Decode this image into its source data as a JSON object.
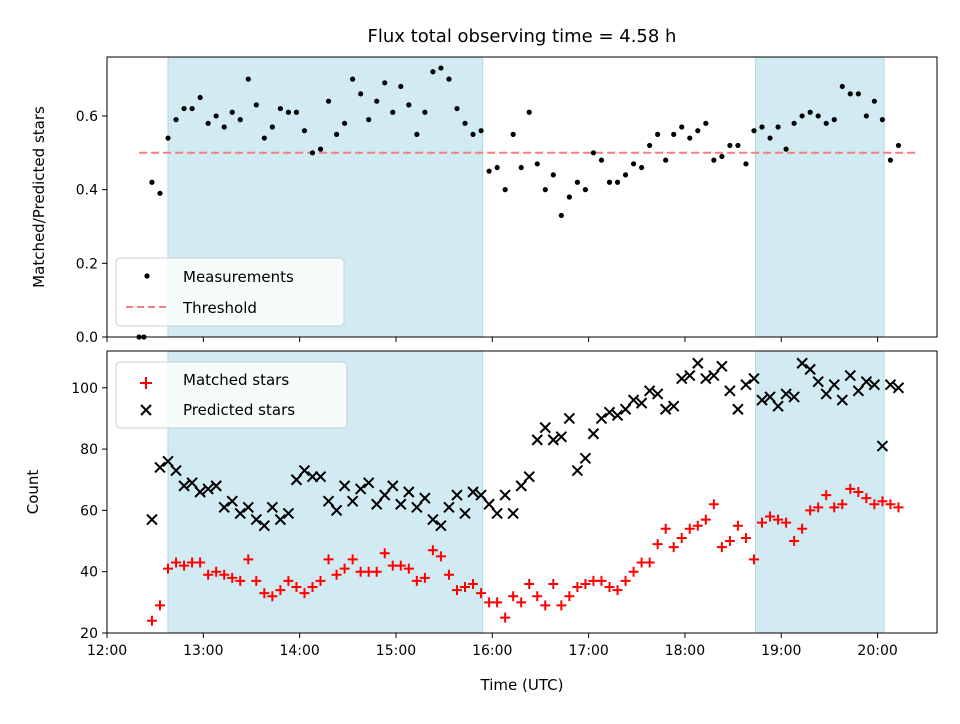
{
  "chart_data": [
    {
      "type": "scatter",
      "title": "Flux total observing time = 4.58 h",
      "ylabel": "Matched/Predicted stars",
      "xlabel": "",
      "xlim": [
        "12:00",
        "20:37"
      ],
      "ylim": [
        0,
        0.76
      ],
      "yticks": [
        0.0,
        0.2,
        0.4,
        0.6
      ],
      "ytick_labels": [
        "0.0",
        "0.2",
        "0.4",
        "0.6"
      ],
      "legend": {
        "position": "lower-left",
        "entries": [
          "Measurements",
          "Threshold"
        ]
      },
      "shaded_spans": [
        [
          "12:38",
          "15:54"
        ],
        [
          "18:44",
          "20:04"
        ]
      ],
      "colors": {
        "span": "#add8e6",
        "measurement": "#000000",
        "threshold": "#f08080"
      },
      "threshold": {
        "name": "Threshold",
        "y": 0.5,
        "x_range": [
          "12:20",
          "20:24"
        ]
      },
      "series": [
        {
          "name": "Measurements",
          "x": [
            "12:20",
            "12:23",
            "12:28",
            "12:33",
            "12:38",
            "12:43",
            "12:48",
            "12:53",
            "12:58",
            "13:03",
            "13:08",
            "13:13",
            "13:18",
            "13:23",
            "13:28",
            "13:33",
            "13:38",
            "13:43",
            "13:48",
            "13:53",
            "13:58",
            "14:03",
            "14:08",
            "14:13",
            "14:18",
            "14:23",
            "14:28",
            "14:33",
            "14:38",
            "14:43",
            "14:48",
            "14:53",
            "14:58",
            "15:03",
            "15:08",
            "15:13",
            "15:18",
            "15:23",
            "15:28",
            "15:33",
            "15:38",
            "15:43",
            "15:48",
            "15:53",
            "15:58",
            "16:03",
            "16:08",
            "16:13",
            "16:18",
            "16:23",
            "16:28",
            "16:33",
            "16:38",
            "16:43",
            "16:48",
            "16:53",
            "16:58",
            "17:03",
            "17:08",
            "17:13",
            "17:18",
            "17:23",
            "17:28",
            "17:33",
            "17:38",
            "17:43",
            "17:48",
            "17:53",
            "17:58",
            "18:03",
            "18:08",
            "18:13",
            "18:18",
            "18:23",
            "18:28",
            "18:33",
            "18:38",
            "18:43",
            "18:48",
            "18:53",
            "18:58",
            "19:03",
            "19:08",
            "19:13",
            "19:18",
            "19:23",
            "19:28",
            "19:33",
            "19:38",
            "19:43",
            "19:48",
            "19:53",
            "19:58",
            "20:03",
            "20:08",
            "20:13"
          ],
          "y": [
            0.0,
            0.0,
            0.42,
            0.39,
            0.54,
            0.59,
            0.62,
            0.62,
            0.65,
            0.58,
            0.6,
            0.57,
            0.61,
            0.59,
            0.7,
            0.63,
            0.54,
            0.57,
            0.62,
            0.61,
            0.61,
            0.56,
            0.5,
            0.51,
            0.64,
            0.55,
            0.58,
            0.7,
            0.66,
            0.59,
            0.64,
            0.69,
            0.61,
            0.68,
            0.63,
            0.55,
            0.61,
            0.72,
            0.73,
            0.7,
            0.62,
            0.58,
            0.55,
            0.56,
            0.45,
            0.46,
            0.4,
            0.55,
            0.46,
            0.61,
            0.47,
            0.4,
            0.44,
            0.33,
            0.38,
            0.42,
            0.4,
            0.5,
            0.48,
            0.42,
            0.42,
            0.44,
            0.47,
            0.46,
            0.52,
            0.55,
            0.48,
            0.55,
            0.57,
            0.54,
            0.56,
            0.58,
            0.48,
            0.49,
            0.52,
            0.52,
            0.47,
            0.56,
            0.57,
            0.54,
            0.57,
            0.51,
            0.58,
            0.6,
            0.61,
            0.6,
            0.58,
            0.59,
            0.68,
            0.66,
            0.66,
            0.6,
            0.64,
            0.59,
            0.48,
            0.52
          ]
        }
      ]
    },
    {
      "type": "scatter",
      "title": "",
      "ylabel": "Count",
      "xlabel": "Time (UTC)",
      "xlim": [
        "12:00",
        "20:37"
      ],
      "ylim": [
        20,
        112
      ],
      "yticks": [
        20,
        40,
        60,
        80,
        100
      ],
      "ytick_labels": [
        "20",
        "40",
        "60",
        "80",
        "100"
      ],
      "xticks": [
        "12:00",
        "13:00",
        "14:00",
        "15:00",
        "16:00",
        "17:00",
        "18:00",
        "19:00",
        "20:00"
      ],
      "legend": {
        "position": "upper-left",
        "entries": [
          "Matched stars",
          "Predicted stars"
        ]
      },
      "shaded_spans": [
        [
          "12:38",
          "15:54"
        ],
        [
          "18:44",
          "20:04"
        ]
      ],
      "colors": {
        "span": "#add8e6",
        "matched": "#ff0000",
        "predicted": "#000000"
      },
      "series": [
        {
          "name": "Matched stars",
          "x": [
            "12:28",
            "12:33",
            "12:38",
            "12:43",
            "12:48",
            "12:53",
            "12:58",
            "13:03",
            "13:08",
            "13:13",
            "13:18",
            "13:23",
            "13:28",
            "13:33",
            "13:38",
            "13:43",
            "13:48",
            "13:53",
            "13:58",
            "14:03",
            "14:08",
            "14:13",
            "14:18",
            "14:23",
            "14:28",
            "14:33",
            "14:38",
            "14:43",
            "14:48",
            "14:53",
            "14:58",
            "15:03",
            "15:08",
            "15:13",
            "15:18",
            "15:23",
            "15:28",
            "15:33",
            "15:38",
            "15:43",
            "15:48",
            "15:53",
            "15:58",
            "16:03",
            "16:08",
            "16:13",
            "16:18",
            "16:23",
            "16:28",
            "16:33",
            "16:38",
            "16:43",
            "16:48",
            "16:53",
            "16:58",
            "17:03",
            "17:08",
            "17:13",
            "17:18",
            "17:23",
            "17:28",
            "17:33",
            "17:38",
            "17:43",
            "17:48",
            "17:53",
            "17:58",
            "18:03",
            "18:08",
            "18:13",
            "18:18",
            "18:23",
            "18:28",
            "18:33",
            "18:38",
            "18:43",
            "18:48",
            "18:53",
            "18:58",
            "19:03",
            "19:08",
            "19:13",
            "19:18",
            "19:23",
            "19:28",
            "19:33",
            "19:38",
            "19:43",
            "19:48",
            "19:53",
            "19:58",
            "20:03",
            "20:08",
            "20:13"
          ],
          "y": [
            24,
            29,
            41,
            43,
            42,
            43,
            43,
            39,
            40,
            39,
            38,
            37,
            44,
            37,
            33,
            32,
            34,
            37,
            35,
            33,
            35,
            37,
            44,
            39,
            41,
            44,
            40,
            40,
            40,
            46,
            42,
            42,
            41,
            37,
            38,
            47,
            45,
            39,
            34,
            35,
            36,
            33,
            30,
            30,
            25,
            32,
            30,
            36,
            32,
            29,
            36,
            29,
            32,
            35,
            36,
            37,
            37,
            35,
            34,
            37,
            40,
            43,
            43,
            49,
            54,
            48,
            51,
            54,
            55,
            57,
            62,
            48,
            50,
            55,
            51,
            44,
            56,
            58,
            57,
            56,
            50,
            54,
            60,
            61,
            65,
            61,
            62,
            67,
            66,
            64,
            62,
            63,
            62,
            61
          ]
        },
        {
          "name": "Predicted stars",
          "x": [
            "12:28",
            "12:33",
            "12:38",
            "12:43",
            "12:48",
            "12:53",
            "12:58",
            "13:03",
            "13:08",
            "13:13",
            "13:18",
            "13:23",
            "13:28",
            "13:33",
            "13:38",
            "13:43",
            "13:48",
            "13:53",
            "13:58",
            "14:03",
            "14:08",
            "14:13",
            "14:18",
            "14:23",
            "14:28",
            "14:33",
            "14:38",
            "14:43",
            "14:48",
            "14:53",
            "14:58",
            "15:03",
            "15:08",
            "15:13",
            "15:18",
            "15:23",
            "15:28",
            "15:33",
            "15:38",
            "15:43",
            "15:48",
            "15:53",
            "15:58",
            "16:03",
            "16:08",
            "16:13",
            "16:18",
            "16:23",
            "16:28",
            "16:33",
            "16:38",
            "16:43",
            "16:48",
            "16:53",
            "16:58",
            "17:03",
            "17:08",
            "17:13",
            "17:18",
            "17:23",
            "17:28",
            "17:33",
            "17:38",
            "17:43",
            "17:48",
            "17:53",
            "17:58",
            "18:03",
            "18:08",
            "18:13",
            "18:18",
            "18:23",
            "18:28",
            "18:33",
            "18:38",
            "18:43",
            "18:48",
            "18:53",
            "18:58",
            "19:03",
            "19:08",
            "19:13",
            "19:18",
            "19:23",
            "19:28",
            "19:33",
            "19:38",
            "19:43",
            "19:48",
            "19:53",
            "19:58",
            "20:03",
            "20:08",
            "20:13"
          ],
          "y": [
            57,
            74,
            76,
            73,
            68,
            69,
            66,
            67,
            68,
            61,
            63,
            59,
            61,
            57,
            55,
            61,
            57,
            59,
            70,
            73,
            71,
            71,
            63,
            60,
            68,
            63,
            67,
            69,
            62,
            65,
            68,
            62,
            66,
            61,
            64,
            57,
            55,
            61,
            65,
            59,
            66,
            65,
            62,
            59,
            65,
            59,
            68,
            71,
            83,
            87,
            83,
            84,
            90,
            73,
            77,
            85,
            90,
            92,
            91,
            93,
            96,
            95,
            99,
            98,
            93,
            94,
            103,
            104,
            108,
            103,
            104,
            107,
            99,
            93,
            101,
            103,
            96,
            97,
            94,
            98,
            97,
            108,
            106,
            102,
            98,
            101,
            96,
            104,
            99,
            102,
            101,
            81,
            101,
            100
          ]
        }
      ]
    }
  ]
}
